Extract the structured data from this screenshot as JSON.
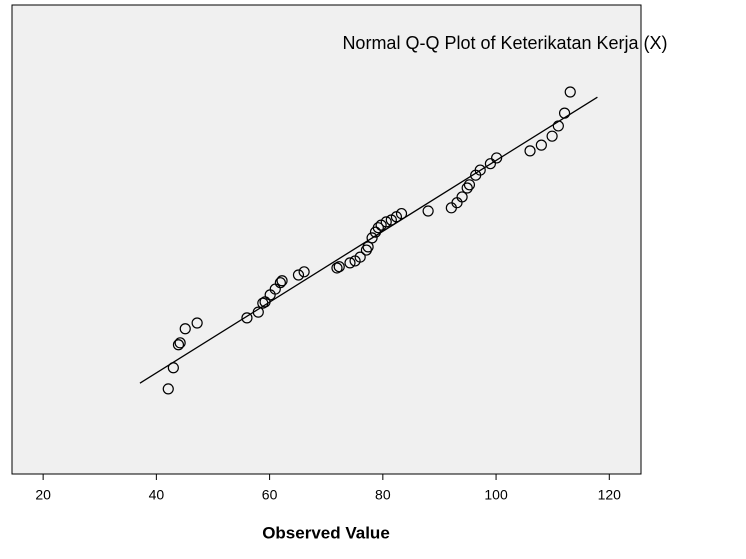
{
  "chart_data": {
    "type": "scatter",
    "title": "Normal Q-Q Plot of Keterikatan Kerja (X)",
    "x_label": "Observed Value",
    "xlim": [
      14.5,
      125.6
    ],
    "xticks": [
      20,
      40,
      60,
      80,
      100,
      120
    ],
    "ylim": [
      -3.69,
      3.64
    ],
    "color": "#000000",
    "background": "#f0f0f0",
    "x": [
      42.1,
      43.0,
      43.9,
      44.2,
      45.1,
      47.2,
      56.0,
      58.0,
      58.8,
      59.2,
      60.1,
      61.0,
      61.9,
      62.2,
      65.1,
      66.1,
      71.9,
      72.3,
      74.2,
      75.1,
      76.0,
      77.1,
      77.4,
      78.1,
      78.7,
      79.2,
      79.7,
      80.6,
      81.5,
      82.4,
      83.3,
      88.0,
      92.1,
      93.1,
      94.0,
      94.9,
      95.3,
      96.4,
      97.2,
      99.0,
      100.1,
      106.0,
      108.0,
      109.9,
      111.0,
      112.1,
      113.1
    ],
    "values": [
      -2.36,
      -2.03,
      -1.67,
      -1.64,
      -1.42,
      -1.33,
      -1.25,
      -1.16,
      -1.02,
      -1.0,
      -0.89,
      -0.8,
      -0.7,
      -0.67,
      -0.58,
      -0.53,
      -0.47,
      -0.45,
      -0.39,
      -0.36,
      -0.3,
      -0.19,
      -0.14,
      0.0,
      0.09,
      0.16,
      0.2,
      0.25,
      0.28,
      0.33,
      0.38,
      0.42,
      0.47,
      0.55,
      0.64,
      0.78,
      0.83,
      0.98,
      1.06,
      1.16,
      1.25,
      1.36,
      1.45,
      1.59,
      1.75,
      1.95,
      2.28
    ],
    "reference_line": {
      "x": [
        37.1,
        117.9
      ],
      "y": [
        -2.27,
        2.2
      ]
    }
  }
}
